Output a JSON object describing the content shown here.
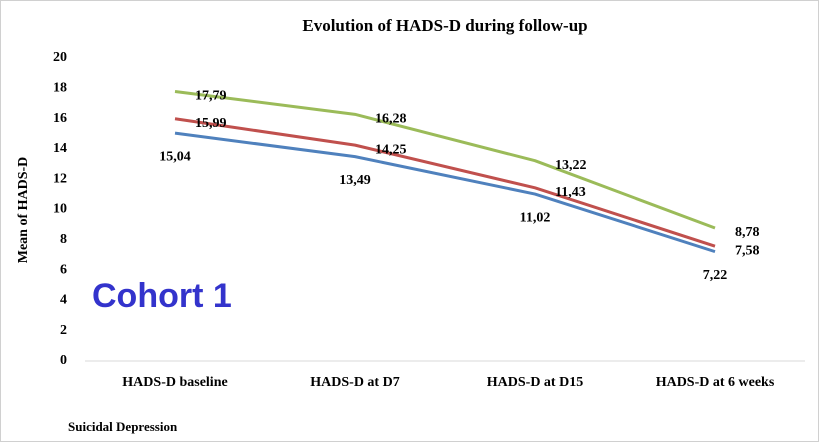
{
  "chart_data": {
    "type": "line",
    "title": "Evolution of HADS-D during follow-up",
    "y_label": "Mean of HADS-D",
    "annotation": "Cohort 1",
    "footnote": "Suicidal Depression",
    "categories": [
      "HADS-D baseline",
      "HADS-D at D7",
      "HADS-D at D15",
      "HADS-D at 6 weeks"
    ],
    "series": [
      {
        "color": "#9bbb59",
        "values": [
          17.79,
          16.28,
          13.22,
          8.78
        ],
        "value_labels": [
          "17,79",
          "16,28",
          "13,22",
          "8,78"
        ]
      },
      {
        "color": "#c0504d",
        "values": [
          15.99,
          14.25,
          11.43,
          7.58
        ],
        "value_labels": [
          "15,99",
          "14,25",
          "11,43",
          "7,58"
        ]
      },
      {
        "color": "#4f81bd",
        "values": [
          15.04,
          13.49,
          11.02,
          7.22
        ],
        "value_labels": [
          "15,04",
          "13,49",
          "11,02",
          "7,22"
        ]
      }
    ],
    "ylim": [
      0,
      20
    ],
    "yticks": [
      0,
      2,
      4,
      6,
      8,
      10,
      12,
      14,
      16,
      18,
      20
    ],
    "grid": false
  }
}
